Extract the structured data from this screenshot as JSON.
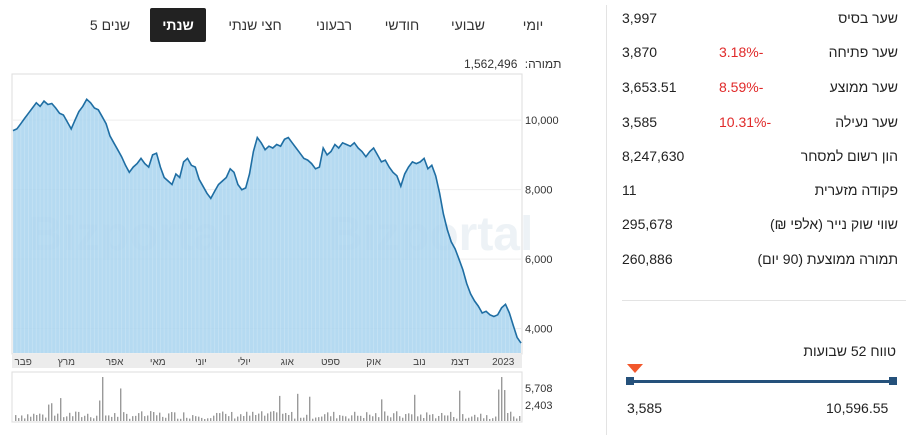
{
  "tabs": [
    {
      "label": "יומי",
      "active": false
    },
    {
      "label": "שבועי",
      "active": false
    },
    {
      "label": "חודשי",
      "active": false
    },
    {
      "label": "רבעוני",
      "active": false
    },
    {
      "label": "חצי שנתי",
      "active": false
    },
    {
      "label": "שנתי",
      "active": true
    },
    {
      "label": "5 שנים",
      "active": false
    }
  ],
  "turnover": {
    "label": "תמורה:",
    "value": "1,562,496"
  },
  "stats": [
    {
      "label": "שער בסיס",
      "value": "3,997",
      "change": ""
    },
    {
      "label": "שער פתיחה",
      "value": "3,870",
      "change": "3.18%-"
    },
    {
      "label": "שער ממוצע",
      "value": "3,653.51",
      "change": "8.59%-"
    },
    {
      "label": "שער נעילה",
      "value": "3,585",
      "change": "10.31%-"
    },
    {
      "label": "הון רשום למסחר",
      "value": "8,247,630",
      "change": ""
    },
    {
      "label": "פקודה מזערית",
      "value": "11",
      "change": ""
    },
    {
      "label": "שווי שוק נייר (אלפי ₪)",
      "value": "295,678",
      "change": ""
    },
    {
      "label": "תמורה ממוצעת (90 יום)",
      "value": "260,886",
      "change": ""
    }
  ],
  "range52": {
    "title": "טווח 52 שבועות",
    "low": "3,585",
    "high": "10,596.55",
    "current_fraction": 0.0
  },
  "colors": {
    "line": "#1f6ea3",
    "area": "#a8d4ef",
    "accent_red": "#e02a2a",
    "range": "#25517b",
    "marker": "#f2572b"
  },
  "chart_data": {
    "type": "area",
    "watermark": "Bizportal",
    "y_ticks": [
      "10,000",
      "8,000",
      "6,000",
      "4,000"
    ],
    "y_tick_values": [
      10000,
      8000,
      6000,
      4000
    ],
    "ylim": [
      3300,
      11300
    ],
    "x_labels": [
      "פבר",
      "מרץ",
      "אפר",
      "מאי",
      "יוני",
      "יולי",
      "אוג",
      "ספט",
      "אוק",
      "נוב",
      "דצמ",
      "2023"
    ],
    "x_label_positions": [
      0.02,
      0.105,
      0.2,
      0.285,
      0.37,
      0.455,
      0.54,
      0.625,
      0.71,
      0.8,
      0.88,
      0.965
    ],
    "series": [
      {
        "values": [
          9700,
          9750,
          9900,
          10050,
          10200,
          10350,
          10500,
          10400,
          10550,
          10450,
          10480,
          10350,
          10200,
          10150,
          9950,
          9750,
          10000,
          10250,
          10400,
          10600,
          10500,
          10350,
          10300,
          10100,
          9900,
          9550,
          9350,
          9150,
          8950,
          8700,
          8500,
          8650,
          8750,
          8900,
          8750,
          8650,
          9000,
          9050,
          8650,
          8350,
          8250,
          8150,
          8450,
          8350,
          8800,
          8900,
          8700,
          8650,
          8300,
          8100,
          7900,
          7750,
          7950,
          8150,
          8250,
          8350,
          8600,
          8500,
          8150,
          8000,
          8050,
          8450,
          9100,
          9500,
          9350,
          9150,
          9250,
          9200,
          9300,
          9250,
          9450,
          9500,
          9350,
          9200,
          9050,
          8900,
          8850,
          8750,
          8600,
          8650,
          9200,
          9000,
          9100,
          9300,
          9200,
          9350,
          9300,
          9250,
          9350,
          9200,
          9100,
          8950,
          9100,
          9200,
          9000,
          8800,
          8850,
          8650,
          8500,
          8400,
          8100,
          8450,
          8650,
          8800,
          8750,
          8800,
          8900,
          8600,
          8700,
          8400,
          7900,
          7300,
          6850,
          6500,
          6300,
          6000,
          5700,
          5300,
          5000,
          4800,
          4650,
          4450,
          4500,
          4400,
          4350,
          4400,
          4600,
          4700,
          4450,
          4100,
          3750,
          3585
        ]
      },
      {
        "name": "volume_ticks",
        "values": [
          "5,708",
          "2,403"
        ]
      }
    ]
  }
}
